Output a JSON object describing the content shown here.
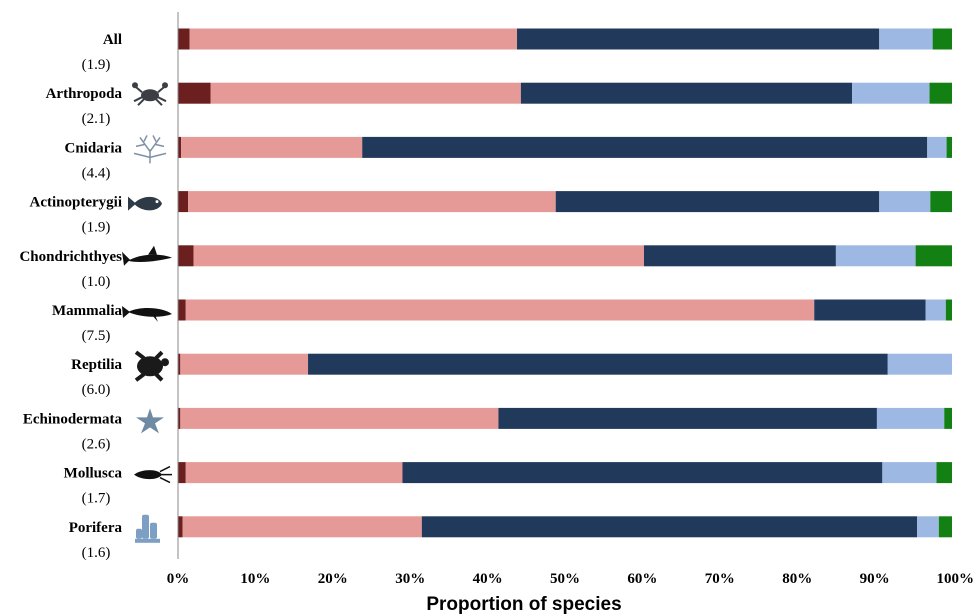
{
  "chart_data": {
    "type": "bar",
    "orientation": "horizontal",
    "stacked": true,
    "xlabel": "Proportion of species",
    "xlim": [
      0,
      100
    ],
    "xticks": [
      "0%",
      "10%",
      "20%",
      "30%",
      "40%",
      "50%",
      "60%",
      "70%",
      "80%",
      "90%",
      "100%"
    ],
    "categories": [
      {
        "name": "All",
        "value_label": "(1.9)",
        "icon": ""
      },
      {
        "name": "Arthropoda",
        "value_label": "(2.1)",
        "icon": "crab-icon"
      },
      {
        "name": "Cnidaria",
        "value_label": "(4.4)",
        "icon": "coral-icon"
      },
      {
        "name": "Actinopterygii",
        "value_label": "(1.9)",
        "icon": "fish-icon"
      },
      {
        "name": "Chondrichthyes",
        "value_label": "(1.0)",
        "icon": "shark-icon"
      },
      {
        "name": "Mammalia",
        "value_label": "(7.5)",
        "icon": "whale-icon"
      },
      {
        "name": "Reptilia",
        "value_label": "(6.0)",
        "icon": "turtle-icon"
      },
      {
        "name": "Echinodermata",
        "value_label": "(2.6)",
        "icon": "starfish-icon"
      },
      {
        "name": "Mollusca",
        "value_label": "(1.7)",
        "icon": "squid-icon"
      },
      {
        "name": "Porifera",
        "value_label": "(1.6)",
        "icon": "sponge-icon"
      }
    ],
    "segment_colors": [
      "#6b1f1f",
      "#e69a98",
      "#213a5c",
      "#9db8e3",
      "#138013"
    ],
    "series": [
      {
        "values": [
          1.5,
          4.2,
          0.4,
          1.3,
          2.0,
          1.0,
          0.3,
          0.3,
          1.0,
          0.6
        ]
      },
      {
        "values": [
          42.3,
          40.1,
          23.4,
          47.5,
          58.2,
          81.2,
          16.5,
          41.1,
          28.0,
          30.9
        ]
      },
      {
        "values": [
          46.8,
          42.8,
          73.0,
          41.8,
          24.8,
          14.4,
          74.9,
          48.9,
          62.0,
          64.0
        ]
      },
      {
        "values": [
          6.9,
          10.0,
          2.5,
          6.6,
          10.3,
          2.6,
          8.3,
          8.7,
          7.0,
          2.8
        ]
      },
      {
        "values": [
          2.5,
          2.9,
          0.7,
          2.8,
          4.7,
          0.8,
          0.0,
          1.0,
          2.0,
          1.7
        ]
      }
    ],
    "grid": false,
    "legend": "none"
  }
}
